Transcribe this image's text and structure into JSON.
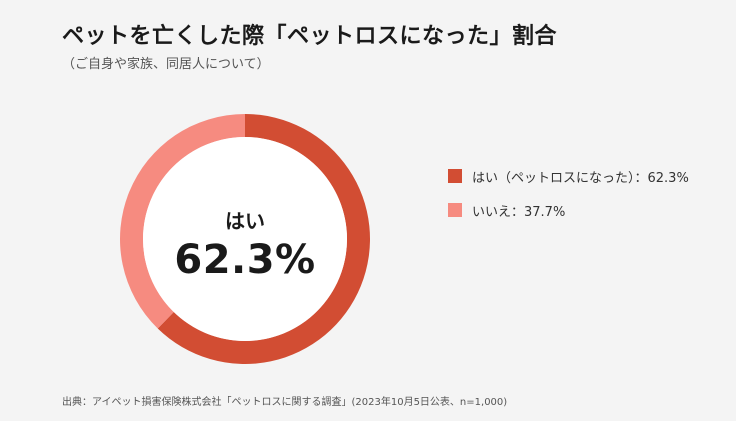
{
  "title": "ペットを亡くした際「ペットロスになった」割合",
  "subtitle": "（ご自身や家族、同居人について）",
  "source": "出典：アイペット損害保険株式会社「ペットロスに関する調査」(2023年10月5日公表、n=1,000)",
  "chart_data": {
    "type": "pie",
    "donut": true,
    "center_label": "はい",
    "center_value": "62.3%",
    "slices": [
      {
        "label": "はい（ペットロスになった）",
        "value": 62.3,
        "legend": "はい（ペットロスになった）：62.3%",
        "color": "#d24d33"
      },
      {
        "label": "いいえ",
        "value": 37.7,
        "legend": "いいえ：37.7%",
        "color": "#f68b80"
      }
    ],
    "start": "top",
    "direction": "clockwise",
    "legend_position": "right"
  }
}
